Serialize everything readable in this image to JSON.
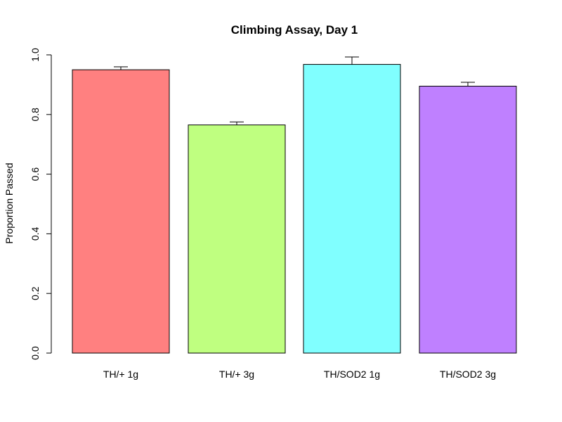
{
  "chart_data": {
    "type": "bar",
    "title": "Climbing Assay, Day 1",
    "xlabel": "",
    "ylabel": "Proportion Passed",
    "ylim": [
      0,
      1
    ],
    "yticks": [
      "0.0",
      "0.2",
      "0.4",
      "0.6",
      "0.8",
      "1.0"
    ],
    "categories": [
      "TH/+ 1g",
      "TH/+ 3g",
      "TH/SOD2 1g",
      "TH/SOD2 3g"
    ],
    "values": [
      0.95,
      0.765,
      0.968,
      0.895
    ],
    "error_upper": [
      0.96,
      0.775,
      0.993,
      0.908
    ],
    "colors": [
      "#FF8080",
      "#BFFF80",
      "#80FFFF",
      "#BF80FF"
    ],
    "grid": false,
    "legend": "none"
  }
}
